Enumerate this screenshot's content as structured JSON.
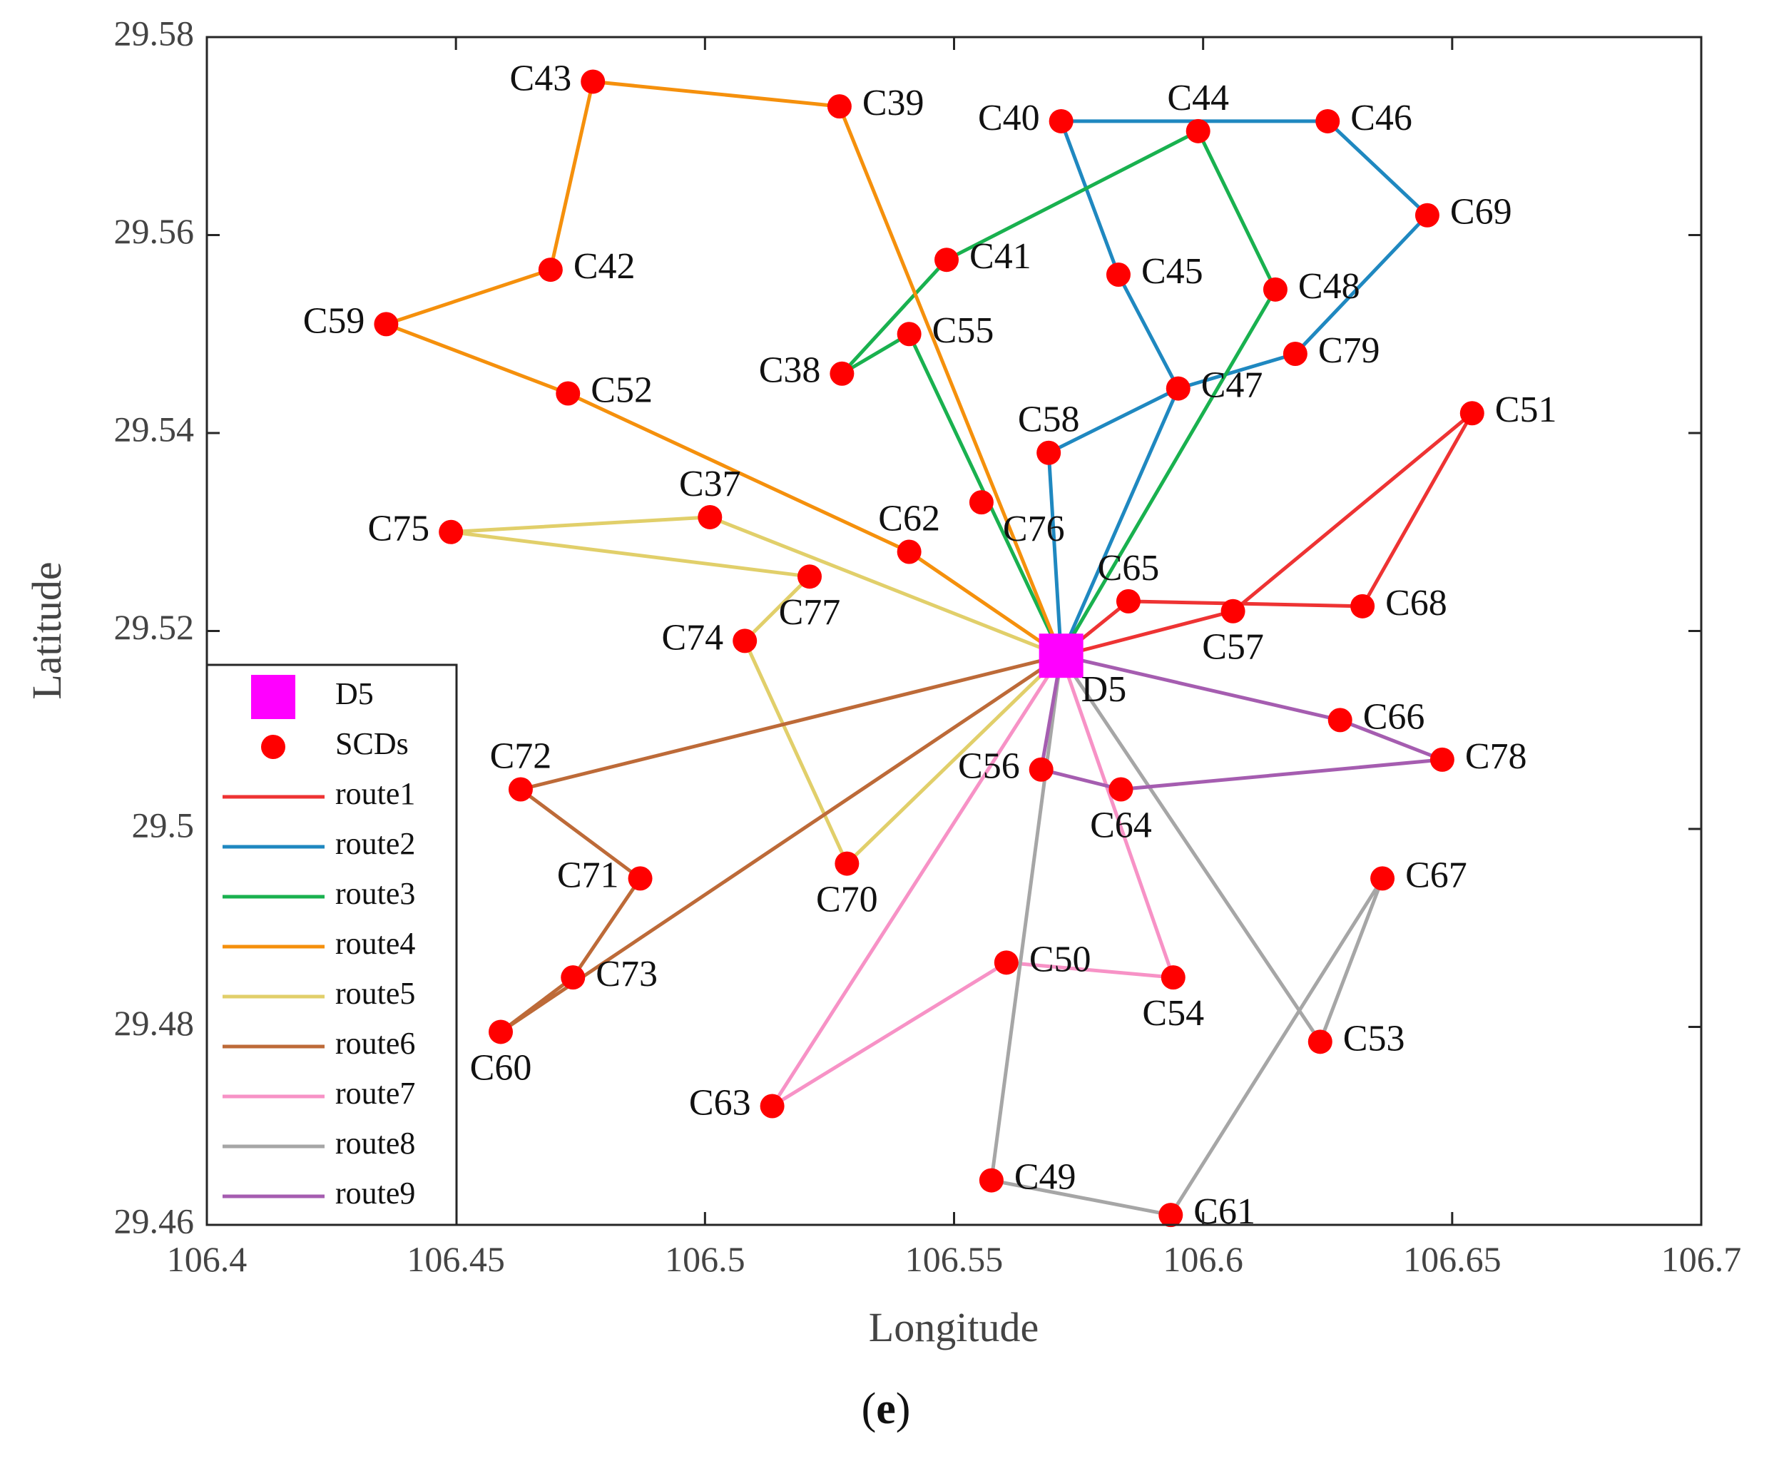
{
  "chart_data": {
    "type": "scatter",
    "title": "",
    "xlabel": "Longitude",
    "ylabel": "Latitude",
    "xlim": [
      106.4,
      106.7
    ],
    "ylim": [
      29.46,
      29.58
    ],
    "xticks": [
      106.4,
      106.45,
      106.5,
      106.55,
      106.6,
      106.65,
      106.7
    ],
    "xtick_labels": [
      "106.4",
      "106.45",
      "106.5",
      "106.55",
      "106.6",
      "106.65",
      "106.7"
    ],
    "yticks": [
      29.46,
      29.48,
      29.5,
      29.52,
      29.54,
      29.56,
      29.58
    ],
    "ytick_labels": [
      "29.46",
      "29.48",
      "29.5",
      "29.52",
      "29.54",
      "29.56",
      "29.58"
    ],
    "caption": "(e)",
    "caption_parts": {
      "open": "(",
      "letter": "e",
      "close": ")"
    },
    "depot": {
      "name": "D5",
      "x": 106.5715,
      "y": 29.5175,
      "color": "#ff00ff"
    },
    "point_color": "#ff0000",
    "points": [
      {
        "name": "C37",
        "x": 106.501,
        "y": 29.5315,
        "label_pos": "above"
      },
      {
        "name": "C38",
        "x": 106.5275,
        "y": 29.546,
        "label_pos": "left"
      },
      {
        "name": "C39",
        "x": 106.527,
        "y": 29.573,
        "label_pos": "right"
      },
      {
        "name": "C40",
        "x": 106.5715,
        "y": 29.5715,
        "label_pos": "left"
      },
      {
        "name": "C41",
        "x": 106.5485,
        "y": 29.5575,
        "label_pos": "right"
      },
      {
        "name": "C42",
        "x": 106.469,
        "y": 29.5565,
        "label_pos": "right"
      },
      {
        "name": "C43",
        "x": 106.4775,
        "y": 29.5755,
        "label_pos": "left"
      },
      {
        "name": "C44",
        "x": 106.599,
        "y": 29.5705,
        "label_pos": "above"
      },
      {
        "name": "C45",
        "x": 106.583,
        "y": 29.556,
        "label_pos": "right"
      },
      {
        "name": "C46",
        "x": 106.625,
        "y": 29.5715,
        "label_pos": "right"
      },
      {
        "name": "C47",
        "x": 106.595,
        "y": 29.5445,
        "label_pos": "right"
      },
      {
        "name": "C48",
        "x": 106.6145,
        "y": 29.5545,
        "label_pos": "right"
      },
      {
        "name": "C49",
        "x": 106.5575,
        "y": 29.4645,
        "label_pos": "right"
      },
      {
        "name": "C50",
        "x": 106.5605,
        "y": 29.4865,
        "label_pos": "right"
      },
      {
        "name": "C51",
        "x": 106.654,
        "y": 29.542,
        "label_pos": "right"
      },
      {
        "name": "C52",
        "x": 106.4725,
        "y": 29.544,
        "label_pos": "right"
      },
      {
        "name": "C53",
        "x": 106.6235,
        "y": 29.4785,
        "label_pos": "right"
      },
      {
        "name": "C54",
        "x": 106.594,
        "y": 29.485,
        "label_pos": "below"
      },
      {
        "name": "C55",
        "x": 106.541,
        "y": 29.55,
        "label_pos": "right"
      },
      {
        "name": "C56",
        "x": 106.5675,
        "y": 29.506,
        "label_pos": "left"
      },
      {
        "name": "C57",
        "x": 106.606,
        "y": 29.522,
        "label_pos": "below"
      },
      {
        "name": "C58",
        "x": 106.569,
        "y": 29.538,
        "label_pos": "above"
      },
      {
        "name": "C59",
        "x": 106.436,
        "y": 29.551,
        "label_pos": "left"
      },
      {
        "name": "C60",
        "x": 106.459,
        "y": 29.4795,
        "label_pos": "below"
      },
      {
        "name": "C61",
        "x": 106.5935,
        "y": 29.461,
        "label_pos": "right"
      },
      {
        "name": "C62",
        "x": 106.541,
        "y": 29.528,
        "label_pos": "above"
      },
      {
        "name": "C63",
        "x": 106.5135,
        "y": 29.472,
        "label_pos": "left"
      },
      {
        "name": "C64",
        "x": 106.5835,
        "y": 29.504,
        "label_pos": "below"
      },
      {
        "name": "C65",
        "x": 106.585,
        "y": 29.523,
        "label_pos": "above"
      },
      {
        "name": "C66",
        "x": 106.6275,
        "y": 29.511,
        "label_pos": "right"
      },
      {
        "name": "C67",
        "x": 106.636,
        "y": 29.495,
        "label_pos": "right"
      },
      {
        "name": "C68",
        "x": 106.632,
        "y": 29.5225,
        "label_pos": "right"
      },
      {
        "name": "C69",
        "x": 106.645,
        "y": 29.562,
        "label_pos": "right"
      },
      {
        "name": "C70",
        "x": 106.5285,
        "y": 29.4965,
        "label_pos": "below"
      },
      {
        "name": "C71",
        "x": 106.487,
        "y": 29.495,
        "label_pos": "left"
      },
      {
        "name": "C72",
        "x": 106.463,
        "y": 29.504,
        "label_pos": "above"
      },
      {
        "name": "C73",
        "x": 106.4735,
        "y": 29.485,
        "label_pos": "right"
      },
      {
        "name": "C74",
        "x": 106.508,
        "y": 29.519,
        "label_pos": "left"
      },
      {
        "name": "C75",
        "x": 106.449,
        "y": 29.53,
        "label_pos": "left"
      },
      {
        "name": "C76",
        "x": 106.5555,
        "y": 29.533,
        "label_pos": "below-right"
      },
      {
        "name": "C77",
        "x": 106.521,
        "y": 29.5255,
        "label_pos": "below"
      },
      {
        "name": "C78",
        "x": 106.648,
        "y": 29.507,
        "label_pos": "right"
      },
      {
        "name": "C79",
        "x": 106.6185,
        "y": 29.548,
        "label_pos": "right"
      }
    ],
    "series": [
      {
        "name": "route1",
        "color": "#ee3333",
        "stops": [
          "D5",
          "C65",
          "C68",
          "C51",
          "C57",
          "D5"
        ]
      },
      {
        "name": "route2",
        "color": "#1f88c0",
        "stops": [
          "D5",
          "C58",
          "C47",
          "C79",
          "C69",
          "C46",
          "C40",
          "C45",
          "C47",
          "D5"
        ]
      },
      {
        "name": "route3",
        "color": "#19b14f",
        "stops": [
          "D5",
          "C55",
          "C38",
          "C41",
          "C44",
          "C48",
          "D5"
        ]
      },
      {
        "name": "route4",
        "color": "#f5900c",
        "stops": [
          "D5",
          "C62",
          "C52",
          "C59",
          "C42",
          "C43",
          "C39",
          "D5"
        ]
      },
      {
        "name": "route5",
        "color": "#e1cf6a",
        "stops": [
          "D5",
          "C37",
          "C75",
          "C77",
          "C74",
          "C70",
          "D5"
        ]
      },
      {
        "name": "route6",
        "color": "#bd6a38",
        "stops": [
          "D5",
          "C72",
          "C71",
          "C73",
          "C60",
          "D5"
        ]
      },
      {
        "name": "route7",
        "color": "#f792c6",
        "stops": [
          "D5",
          "C63",
          "C50",
          "C54",
          "D5"
        ]
      },
      {
        "name": "route8",
        "color": "#a6a6a6",
        "stops": [
          "D5",
          "C49",
          "C61",
          "C67",
          "C53",
          "D5"
        ]
      },
      {
        "name": "route9",
        "color": "#a55db0",
        "stops": [
          "D5",
          "C56",
          "C64",
          "C78",
          "C66",
          "D5"
        ]
      }
    ],
    "legend": {
      "position": "bottom-left",
      "entries": [
        {
          "label": "D5",
          "kind": "depot"
        },
        {
          "label": "SCDs",
          "kind": "point"
        },
        {
          "label": "route1",
          "kind": "line"
        },
        {
          "label": "route2",
          "kind": "line"
        },
        {
          "label": "route3",
          "kind": "line"
        },
        {
          "label": "route4",
          "kind": "line"
        },
        {
          "label": "route5",
          "kind": "line"
        },
        {
          "label": "route6",
          "kind": "line"
        },
        {
          "label": "route7",
          "kind": "line"
        },
        {
          "label": "route8",
          "kind": "line"
        },
        {
          "label": "route9",
          "kind": "line"
        }
      ]
    }
  }
}
